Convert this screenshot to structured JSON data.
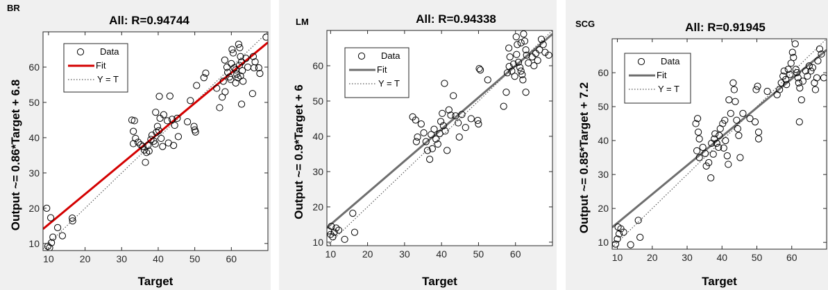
{
  "chart_data": [
    {
      "type": "scatter",
      "tag": "BR",
      "title": "All: R=0.94744",
      "xlabel": "Target",
      "ylabel": "Output ~= 0.86*Target + 6.8",
      "xlim": [
        8.5,
        70
      ],
      "ylim": [
        8,
        70
      ],
      "xticks": [
        10,
        20,
        30,
        40,
        50,
        60
      ],
      "yticks": [
        10,
        20,
        30,
        40,
        50,
        60
      ],
      "fit": {
        "slope": 0.86,
        "intercept": 6.8,
        "color": "#d40000"
      },
      "legend": [
        "Data",
        "Fit",
        "Y = T"
      ],
      "legend_position": "top-left",
      "grid": false,
      "points": [
        [
          9.5,
          20
        ],
        [
          9.8,
          9.2
        ],
        [
          10.3,
          8.8
        ],
        [
          10.8,
          10.2
        ],
        [
          11.2,
          11.8
        ],
        [
          10.6,
          17.3
        ],
        [
          12.5,
          14.5
        ],
        [
          13.8,
          12.2
        ],
        [
          16.5,
          17.2
        ],
        [
          16.6,
          16.4
        ],
        [
          32.8,
          45
        ],
        [
          33.5,
          44.8
        ],
        [
          33.2,
          38.3
        ],
        [
          33.8,
          39.8
        ],
        [
          33.2,
          41.8
        ],
        [
          34.5,
          38.7
        ],
        [
          35.2,
          38
        ],
        [
          35.8,
          37.5
        ],
        [
          36.2,
          36.5
        ],
        [
          36.8,
          35.8
        ],
        [
          36.5,
          33
        ],
        [
          37.2,
          37.8
        ],
        [
          37.5,
          36.2
        ],
        [
          38,
          39.5
        ],
        [
          38.3,
          40.7
        ],
        [
          38.8,
          39
        ],
        [
          39.2,
          38.2
        ],
        [
          39.5,
          41.5
        ],
        [
          39.8,
          43.2
        ],
        [
          40.2,
          42
        ],
        [
          40.8,
          39.8
        ],
        [
          41.2,
          37.5
        ],
        [
          40.5,
          45.5
        ],
        [
          41.5,
          46.5
        ],
        [
          39.3,
          47.2
        ],
        [
          40.3,
          51.7
        ],
        [
          43.2,
          51.8
        ],
        [
          42.5,
          44.8
        ],
        [
          43.8,
          45.2
        ],
        [
          44.5,
          43.5
        ],
        [
          42.8,
          38.5
        ],
        [
          44.2,
          37.8
        ],
        [
          45.2,
          45.5
        ],
        [
          45.5,
          40.3
        ],
        [
          48,
          44.5
        ],
        [
          49.8,
          43.2
        ],
        [
          50,
          42.2
        ],
        [
          50.2,
          41.6
        ],
        [
          48.8,
          50.5
        ],
        [
          50.5,
          54.8
        ],
        [
          52.5,
          57
        ],
        [
          53,
          58.3
        ],
        [
          56,
          54
        ],
        [
          56.8,
          48.5
        ],
        [
          57.5,
          51.5
        ],
        [
          57.8,
          56
        ],
        [
          58.3,
          53
        ],
        [
          58.2,
          62
        ],
        [
          58.8,
          60
        ],
        [
          59,
          58.5
        ],
        [
          59.5,
          57.2
        ],
        [
          59.8,
          56.5
        ],
        [
          60.2,
          65
        ],
        [
          60.5,
          64
        ],
        [
          60,
          61
        ],
        [
          60.8,
          59.8
        ],
        [
          61.2,
          59.2
        ],
        [
          61.5,
          58
        ],
        [
          61.8,
          57
        ],
        [
          61.2,
          55.5
        ],
        [
          62,
          66.5
        ],
        [
          62.3,
          65.5
        ],
        [
          62.5,
          63
        ],
        [
          62.8,
          61.5
        ],
        [
          62.2,
          60.5
        ],
        [
          63,
          59
        ],
        [
          62.5,
          57.5
        ],
        [
          62.8,
          49.5
        ],
        [
          63.2,
          56
        ],
        [
          64,
          62.5
        ],
        [
          64.5,
          60
        ],
        [
          66,
          63
        ],
        [
          66.5,
          61.5
        ],
        [
          66.2,
          59.8
        ],
        [
          65.8,
          52.5
        ],
        [
          67.5,
          59.8
        ],
        [
          67.8,
          58.2
        ],
        [
          69.5,
          68.5
        ]
      ]
    },
    {
      "type": "scatter",
      "tag": "LM",
      "title": "All: R=0.94338",
      "xlabel": "Target",
      "ylabel": "Output ~= 0.9*Target + 6",
      "xlim": [
        9,
        70
      ],
      "ylim": [
        9,
        70
      ],
      "xticks": [
        10,
        20,
        30,
        40,
        50,
        60
      ],
      "yticks": [
        10,
        20,
        30,
        40,
        50,
        60
      ],
      "fit": {
        "slope": 0.9,
        "intercept": 6,
        "color": "#6e6e6e"
      },
      "legend": [
        "Data",
        "Fit",
        "Y = T"
      ],
      "legend_position": "top-left",
      "grid": false,
      "points": [
        [
          9.5,
          13.2
        ],
        [
          10,
          12.2
        ],
        [
          10.6,
          11.5
        ],
        [
          11,
          12.8
        ],
        [
          11.5,
          14
        ],
        [
          10.2,
          14.5
        ],
        [
          12.2,
          13.4
        ],
        [
          13.8,
          10.8
        ],
        [
          16,
          18.2
        ],
        [
          16.5,
          12.8
        ],
        [
          32.2,
          45.5
        ],
        [
          33,
          44.6
        ],
        [
          33.5,
          39.8
        ],
        [
          33.2,
          38.5
        ],
        [
          34.5,
          43.5
        ],
        [
          35.2,
          41
        ],
        [
          35.8,
          38.5
        ],
        [
          36.2,
          36
        ],
        [
          36.8,
          33.5
        ],
        [
          37.5,
          36.5
        ],
        [
          37.2,
          40.5
        ],
        [
          38,
          42
        ],
        [
          38.5,
          39.2
        ],
        [
          39,
          37.8
        ],
        [
          39.5,
          40.8
        ],
        [
          39.8,
          44.2
        ],
        [
          40.2,
          46.5
        ],
        [
          40.5,
          43
        ],
        [
          41,
          41.5
        ],
        [
          41.5,
          36
        ],
        [
          40.8,
          55
        ],
        [
          42,
          47.5
        ],
        [
          42.5,
          46
        ],
        [
          43.2,
          51.5
        ],
        [
          43.8,
          45.8
        ],
        [
          44.5,
          43.8
        ],
        [
          44.8,
          39.8
        ],
        [
          45.5,
          46.2
        ],
        [
          46.5,
          42.5
        ],
        [
          48,
          45
        ],
        [
          49.8,
          44.5
        ],
        [
          50,
          43.5
        ],
        [
          50.2,
          59.2
        ],
        [
          50.5,
          58.8
        ],
        [
          52.5,
          56
        ],
        [
          56.8,
          48.5
        ],
        [
          57.5,
          52.5
        ],
        [
          57.8,
          58
        ],
        [
          58.3,
          59.8
        ],
        [
          58.2,
          65
        ],
        [
          58.5,
          62.5
        ],
        [
          59,
          58.5
        ],
        [
          59.5,
          60.5
        ],
        [
          59.8,
          57
        ],
        [
          60.2,
          68.2
        ],
        [
          60.5,
          66
        ],
        [
          60.3,
          63.2
        ],
        [
          60.8,
          61
        ],
        [
          61.2,
          59.5
        ],
        [
          61.5,
          58.5
        ],
        [
          61.8,
          57.5
        ],
        [
          62,
          56
        ],
        [
          61.5,
          66.5
        ],
        [
          62.2,
          69
        ],
        [
          62.5,
          67
        ],
        [
          62.8,
          64.5
        ],
        [
          63,
          63
        ],
        [
          63.5,
          60.8
        ],
        [
          62.8,
          52.5
        ],
        [
          64.5,
          62.5
        ],
        [
          65,
          60
        ],
        [
          65.5,
          63.5
        ],
        [
          66,
          61.5
        ],
        [
          66.5,
          64.5
        ],
        [
          67,
          67.5
        ],
        [
          67.5,
          66
        ],
        [
          68,
          63.8
        ],
        [
          69,
          63
        ]
      ]
    },
    {
      "type": "scatter",
      "tag": "SCG",
      "title": "All: R=0.91945",
      "xlabel": "Target",
      "ylabel": "Output ~= 0.85*Target + 7.2",
      "xlim": [
        8.5,
        70
      ],
      "ylim": [
        8,
        70
      ],
      "xticks": [
        10,
        20,
        30,
        40,
        50,
        60
      ],
      "yticks": [
        10,
        20,
        30,
        40,
        50,
        60
      ],
      "fit": {
        "slope": 0.85,
        "intercept": 7.2,
        "color": "#6e6e6e"
      },
      "legend": [
        "Data",
        "Fit",
        "Y = T"
      ],
      "legend_position": "top-left",
      "grid": false,
      "points": [
        [
          9.5,
          9.5
        ],
        [
          10,
          11
        ],
        [
          10.5,
          12.5
        ],
        [
          11,
          14
        ],
        [
          11.8,
          13
        ],
        [
          10.2,
          14.5
        ],
        [
          13.8,
          9.3
        ],
        [
          16,
          16.5
        ],
        [
          16.5,
          11.5
        ],
        [
          32.5,
          45
        ],
        [
          33,
          46.5
        ],
        [
          33.2,
          42.5
        ],
        [
          33.5,
          40.5
        ],
        [
          32.8,
          37
        ],
        [
          33.5,
          35
        ],
        [
          34.5,
          38
        ],
        [
          35.2,
          36.2
        ],
        [
          35.5,
          32.5
        ],
        [
          36.2,
          33.5
        ],
        [
          36.8,
          29
        ],
        [
          37.5,
          36
        ],
        [
          37,
          39.2
        ],
        [
          37.8,
          40.5
        ],
        [
          38,
          42
        ],
        [
          38.5,
          39.2
        ],
        [
          39,
          38
        ],
        [
          39.2,
          41.5
        ],
        [
          39.5,
          43.5
        ],
        [
          40.2,
          45
        ],
        [
          40.5,
          37.8
        ],
        [
          41,
          40
        ],
        [
          41.5,
          35.5
        ],
        [
          41.8,
          33
        ],
        [
          40.8,
          46
        ],
        [
          42,
          52
        ],
        [
          42.5,
          48
        ],
        [
          43.2,
          57
        ],
        [
          43.5,
          55
        ],
        [
          43.8,
          51.5
        ],
        [
          44.2,
          46
        ],
        [
          44.5,
          43.5
        ],
        [
          44.8,
          41.5
        ],
        [
          45.2,
          35
        ],
        [
          46,
          48
        ],
        [
          48,
          46.5
        ],
        [
          49.5,
          45.5
        ],
        [
          49.8,
          55
        ],
        [
          50.2,
          56
        ],
        [
          50.5,
          42.5
        ],
        [
          50.5,
          40.5
        ],
        [
          53,
          54.5
        ],
        [
          55.8,
          53.5
        ],
        [
          56.5,
          55
        ],
        [
          57,
          57
        ],
        [
          57.5,
          59
        ],
        [
          57.8,
          60.5
        ],
        [
          58.3,
          58
        ],
        [
          58.5,
          56.5
        ],
        [
          59,
          61
        ],
        [
          59.5,
          59.5
        ],
        [
          59.8,
          62.8
        ],
        [
          60.2,
          66
        ],
        [
          60.5,
          64.5
        ],
        [
          61,
          68.5
        ],
        [
          61.2,
          61
        ],
        [
          61.5,
          60
        ],
        [
          61.8,
          58.5
        ],
        [
          62,
          57
        ],
        [
          62.3,
          55.5
        ],
        [
          62.2,
          45.5
        ],
        [
          62.8,
          52
        ],
        [
          63.2,
          57.5
        ],
        [
          64,
          60.5
        ],
        [
          64.5,
          59
        ],
        [
          65,
          62
        ],
        [
          65.5,
          60.5
        ],
        [
          66,
          61.5
        ],
        [
          66.5,
          57
        ],
        [
          66.8,
          55
        ],
        [
          67.2,
          58.5
        ],
        [
          67.5,
          63.5
        ],
        [
          68,
          67
        ],
        [
          68.5,
          65.5
        ],
        [
          69.2,
          58.5
        ]
      ]
    }
  ]
}
